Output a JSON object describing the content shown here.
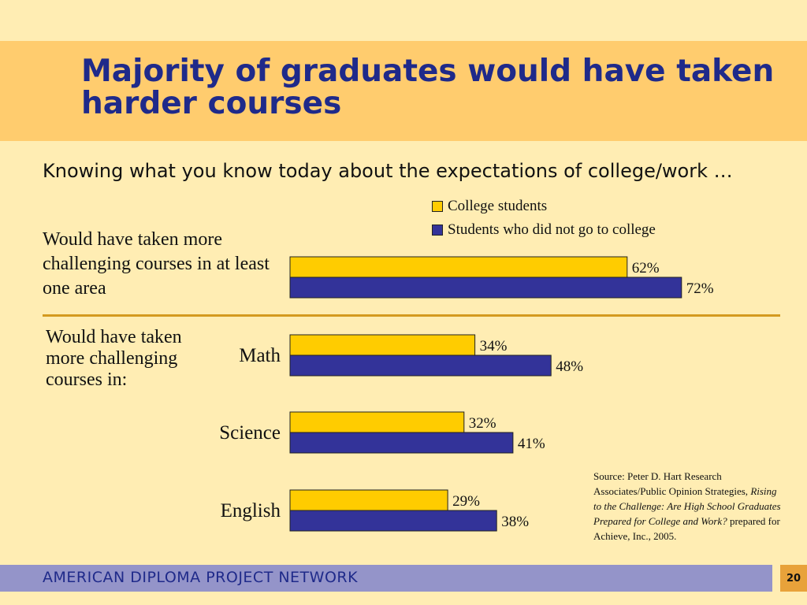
{
  "slide": {
    "title": "Majority of graduates would have taken harder courses",
    "subtitle": "Knowing what you know today about the expectations of college/work …",
    "row_label_overall": "Would have taken more challenging courses in at least one area",
    "group_label": "Would have taken more challenging courses in:",
    "source": {
      "prefix": "Source: Peter D. Hart Research Associates/Public Opinion Strategies, ",
      "italic": "Rising to the Challenge: Are High School Graduates Prepared for College and Work?",
      "suffix": " prepared for Achieve, Inc., 2005."
    },
    "footer": "AMERICAN DIPLOMA PROJECT NETWORK",
    "page_number": "20"
  },
  "chart_data": {
    "type": "bar",
    "orientation": "horizontal",
    "categories": [
      "",
      "Math",
      "Science",
      "English"
    ],
    "series": [
      {
        "name": "College students",
        "color": "#FFCC00",
        "values": [
          62,
          34,
          32,
          29
        ],
        "labels": [
          "62%",
          "34%",
          "32%",
          "29%"
        ]
      },
      {
        "name": "Students who did not go to college",
        "color": "#333399",
        "values": [
          72,
          48,
          41,
          38
        ],
        "labels": [
          "72%",
          "48%",
          "41%",
          "38%"
        ]
      }
    ],
    "legend_position": "top-right",
    "grid": false
  }
}
